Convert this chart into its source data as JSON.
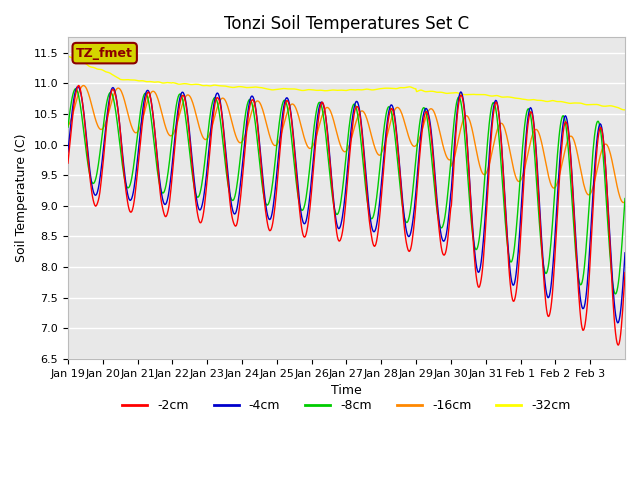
{
  "title": "Tonzi Soil Temperatures Set C",
  "xlabel": "Time",
  "ylabel": "Soil Temperature (C)",
  "ylim": [
    6.5,
    11.75
  ],
  "background_color": "#e8e8e8",
  "plot_bg": "#e8e8e8",
  "annotation_text": "TZ_fmet",
  "annotation_bg": "#d4d400",
  "annotation_border": "#8b0000",
  "series_colors": {
    "-2cm": "#ff0000",
    "-4cm": "#0000cc",
    "-8cm": "#00cc00",
    "-16cm": "#ff8800",
    "-32cm": "#ffff00"
  },
  "tick_labels": [
    "Jan 19",
    "Jan 20",
    "Jan 21",
    "Jan 22",
    "Jan 23",
    "Jan 24",
    "Jan 25",
    "Jan 26",
    "Jan 27",
    "Jan 28",
    "Jan 29",
    "Jan 30",
    "Jan 31",
    "Feb 1",
    "Feb 2",
    "Feb 3"
  ],
  "yticks": [
    6.5,
    7.0,
    7.5,
    8.0,
    8.5,
    9.0,
    9.5,
    10.0,
    10.5,
    11.0,
    11.5
  ],
  "title_fontsize": 12,
  "axis_fontsize": 9,
  "tick_fontsize": 8,
  "figsize": [
    6.4,
    4.8
  ],
  "dpi": 100
}
